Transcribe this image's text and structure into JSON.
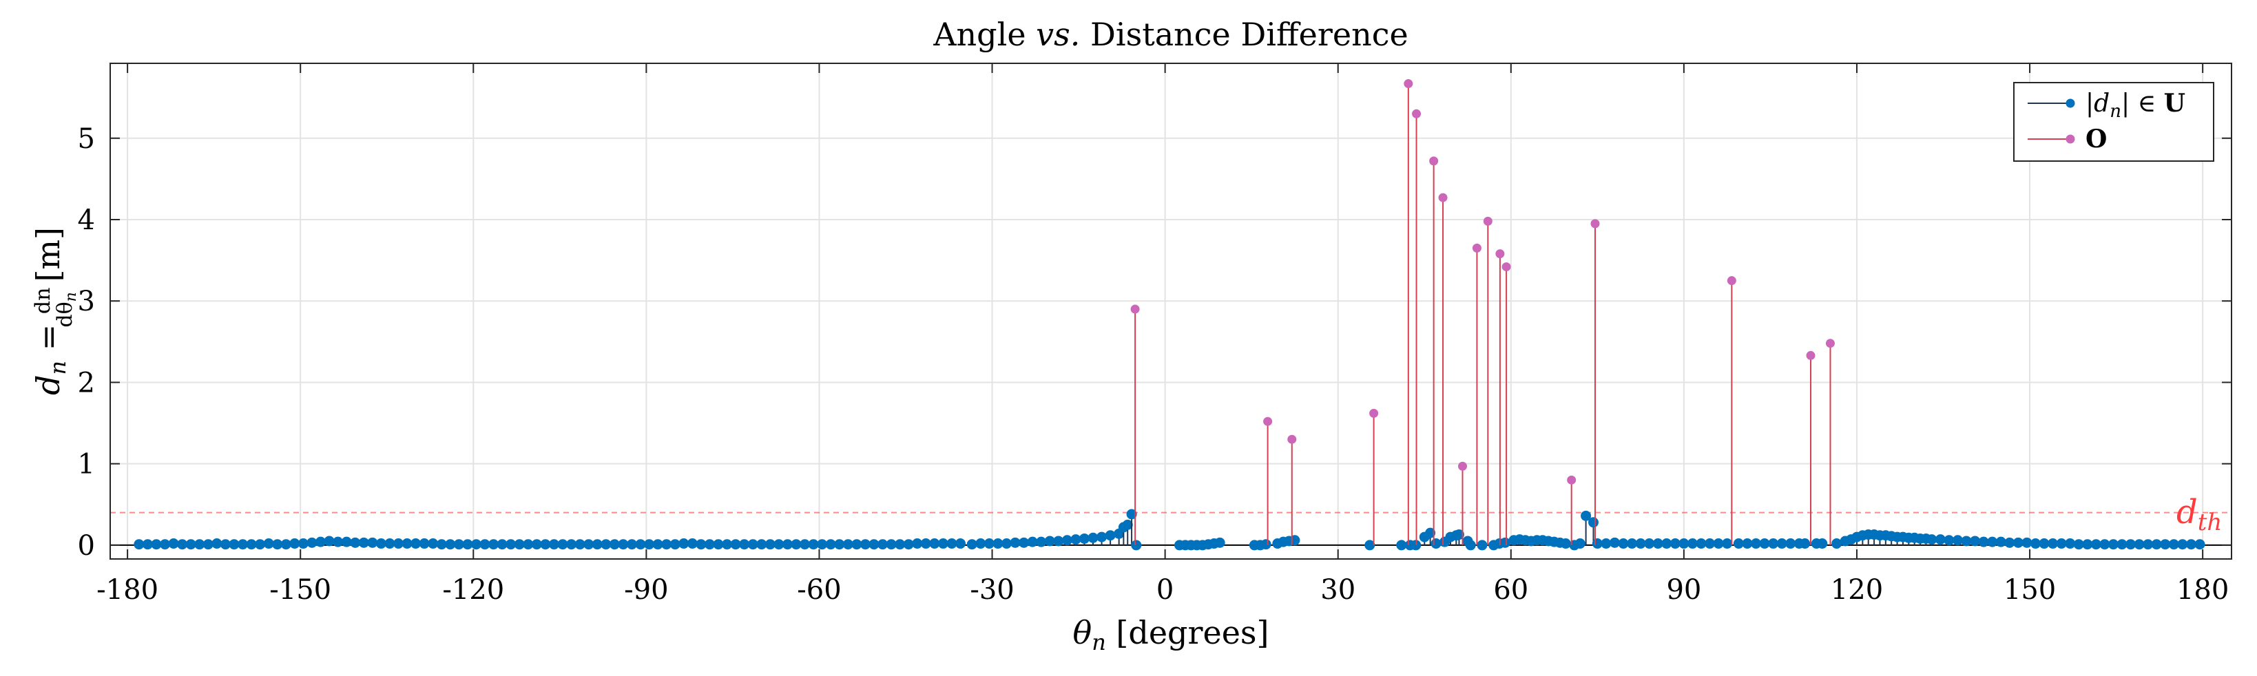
{
  "chart_data": {
    "type": "stem",
    "title": {
      "text": "Angle ",
      "italic": "vs.",
      "rest": " Distance Difference"
    },
    "xlabel": {
      "symbol": "θ",
      "sub": "n",
      "unit": " [degrees]"
    },
    "ylabel": {
      "lhs": "d",
      "lhs_sub": "n",
      "eq": " = ",
      "num": "dn",
      "den": "dθ",
      "den_sub": "n",
      "unit": " [m]"
    },
    "xlim": [
      -183,
      185
    ],
    "ylim": [
      -0.17,
      5.92
    ],
    "xticks": [
      -180,
      -150,
      -120,
      -90,
      -60,
      -30,
      0,
      30,
      60,
      90,
      120,
      150,
      180
    ],
    "yticks": [
      0,
      1,
      2,
      3,
      4,
      5
    ],
    "grid": true,
    "legend_position": "top-right",
    "threshold": {
      "y": 0.4,
      "label": "d",
      "label_sub": "th",
      "color": "#ff3b3b"
    },
    "colors": {
      "U": "#0072bd",
      "U_stem": "#1f3550",
      "O_marker": "#cc66b8",
      "O_stem": "#d64050"
    },
    "legend": [
      {
        "key": "U",
        "pre": "|d",
        "sub": "n",
        "post": "| ∈ ",
        "bold": "U"
      },
      {
        "key": "O",
        "pre": "",
        "sub": "",
        "post": "",
        "bold": "O"
      }
    ],
    "series_U_points": [
      [
        -178,
        0.01
      ],
      [
        -176.5,
        0.01
      ],
      [
        -175,
        0.01
      ],
      [
        -173.5,
        0.01
      ],
      [
        -172,
        0.02
      ],
      [
        -170.5,
        0.01
      ],
      [
        -169,
        0.01
      ],
      [
        -167.5,
        0.01
      ],
      [
        -166,
        0.01
      ],
      [
        -164.5,
        0.02
      ],
      [
        -163,
        0.01
      ],
      [
        -161.5,
        0.01
      ],
      [
        -160,
        0.01
      ],
      [
        -158.5,
        0.01
      ],
      [
        -157,
        0.01
      ],
      [
        -155.5,
        0.02
      ],
      [
        -154,
        0.01
      ],
      [
        -152.5,
        0.01
      ],
      [
        -151,
        0.02
      ],
      [
        -149.5,
        0.02
      ],
      [
        -148,
        0.03
      ],
      [
        -146.5,
        0.04
      ],
      [
        -145,
        0.05
      ],
      [
        -143.5,
        0.04
      ],
      [
        -142,
        0.04
      ],
      [
        -140.5,
        0.03
      ],
      [
        -139,
        0.03
      ],
      [
        -137.5,
        0.03
      ],
      [
        -136,
        0.02
      ],
      [
        -134.5,
        0.02
      ],
      [
        -133,
        0.02
      ],
      [
        -131.5,
        0.02
      ],
      [
        -130,
        0.02
      ],
      [
        -128.5,
        0.02
      ],
      [
        -127,
        0.02
      ],
      [
        -125.5,
        0.01
      ],
      [
        -124,
        0.01
      ],
      [
        -122.5,
        0.01
      ],
      [
        -121,
        0.01
      ],
      [
        -119.5,
        0.01
      ],
      [
        -118,
        0.01
      ],
      [
        -116.5,
        0.01
      ],
      [
        -115,
        0.01
      ],
      [
        -113.5,
        0.01
      ],
      [
        -112,
        0.01
      ],
      [
        -110.5,
        0.01
      ],
      [
        -109,
        0.01
      ],
      [
        -107.5,
        0.01
      ],
      [
        -106,
        0.01
      ],
      [
        -104.5,
        0.01
      ],
      [
        -103,
        0.01
      ],
      [
        -101.5,
        0.01
      ],
      [
        -100,
        0.01
      ],
      [
        -98.5,
        0.01
      ],
      [
        -97,
        0.01
      ],
      [
        -95.5,
        0.01
      ],
      [
        -94,
        0.01
      ],
      [
        -92.5,
        0.01
      ],
      [
        -91,
        0.01
      ],
      [
        -89.5,
        0.01
      ],
      [
        -88,
        0.01
      ],
      [
        -86.5,
        0.01
      ],
      [
        -85,
        0.01
      ],
      [
        -83.5,
        0.02
      ],
      [
        -82,
        0.02
      ],
      [
        -80.5,
        0.01
      ],
      [
        -79,
        0.01
      ],
      [
        -77.5,
        0.01
      ],
      [
        -76,
        0.01
      ],
      [
        -74.5,
        0.01
      ],
      [
        -73,
        0.01
      ],
      [
        -71.5,
        0.01
      ],
      [
        -70,
        0.01
      ],
      [
        -68.5,
        0.01
      ],
      [
        -67,
        0.01
      ],
      [
        -65.5,
        0.01
      ],
      [
        -64,
        0.01
      ],
      [
        -62.5,
        0.01
      ],
      [
        -61,
        0.01
      ],
      [
        -59.5,
        0.01
      ],
      [
        -58,
        0.01
      ],
      [
        -56.5,
        0.01
      ],
      [
        -55,
        0.01
      ],
      [
        -53.5,
        0.01
      ],
      [
        -52,
        0.01
      ],
      [
        -50.5,
        0.01
      ],
      [
        -49,
        0.01
      ],
      [
        -47.5,
        0.01
      ],
      [
        -46,
        0.01
      ],
      [
        -44.5,
        0.01
      ],
      [
        -43,
        0.02
      ],
      [
        -41.5,
        0.02
      ],
      [
        -40,
        0.02
      ],
      [
        -38.5,
        0.02
      ],
      [
        -37,
        0.02
      ],
      [
        -35.5,
        0.02
      ],
      [
        -33.5,
        0.01
      ],
      [
        -32,
        0.02
      ],
      [
        -30.5,
        0.02
      ],
      [
        -29,
        0.02
      ],
      [
        -27.5,
        0.02
      ],
      [
        -26,
        0.03
      ],
      [
        -24.5,
        0.03
      ],
      [
        -23,
        0.04
      ],
      [
        -21.5,
        0.04
      ],
      [
        -20,
        0.05
      ],
      [
        -18.5,
        0.05
      ],
      [
        -17,
        0.06
      ],
      [
        -15.5,
        0.07
      ],
      [
        -14,
        0.08
      ],
      [
        -12.5,
        0.09
      ],
      [
        -11,
        0.1
      ],
      [
        -9.5,
        0.12
      ],
      [
        -8,
        0.14
      ],
      [
        -7.2,
        0.22
      ],
      [
        -6.5,
        0.25
      ],
      [
        -5.8,
        0.38
      ],
      [
        -5,
        0.0
      ],
      [
        2.5,
        0.0
      ],
      [
        3.5,
        0.0
      ],
      [
        4.5,
        0.0
      ],
      [
        5.5,
        0.0
      ],
      [
        6.5,
        0.0
      ],
      [
        7.5,
        0.01
      ],
      [
        8.5,
        0.02
      ],
      [
        9.5,
        0.03
      ],
      [
        15.5,
        0.0
      ],
      [
        16.5,
        0.0
      ],
      [
        17.5,
        0.01
      ],
      [
        19.5,
        0.02
      ],
      [
        20.5,
        0.04
      ],
      [
        21.5,
        0.05
      ],
      [
        22.5,
        0.06
      ],
      [
        35.5,
        0.0
      ],
      [
        41,
        0.0
      ],
      [
        42.5,
        0.0
      ],
      [
        43.5,
        0.0
      ],
      [
        45,
        0.1
      ],
      [
        46,
        0.15
      ],
      [
        47,
        0.02
      ],
      [
        48.5,
        0.04
      ],
      [
        49.5,
        0.1
      ],
      [
        50.5,
        0.12
      ],
      [
        51,
        0.13
      ],
      [
        52.5,
        0.05
      ],
      [
        53,
        0.0
      ],
      [
        55,
        0.0
      ],
      [
        57,
        0.0
      ],
      [
        58,
        0.02
      ],
      [
        59,
        0.03
      ],
      [
        60.5,
        0.06
      ],
      [
        61.5,
        0.07
      ],
      [
        62.5,
        0.06
      ],
      [
        63.5,
        0.05
      ],
      [
        64.5,
        0.06
      ],
      [
        65.5,
        0.06
      ],
      [
        66.5,
        0.05
      ],
      [
        67.5,
        0.04
      ],
      [
        68.5,
        0.03
      ],
      [
        69.5,
        0.02
      ],
      [
        71,
        0.0
      ],
      [
        72,
        0.02
      ],
      [
        73,
        0.36
      ],
      [
        74.3,
        0.28
      ],
      [
        75,
        0.02
      ],
      [
        76.5,
        0.02
      ],
      [
        78,
        0.03
      ],
      [
        79.5,
        0.02
      ],
      [
        81,
        0.02
      ],
      [
        82.5,
        0.02
      ],
      [
        84,
        0.02
      ],
      [
        85.5,
        0.02
      ],
      [
        87,
        0.02
      ],
      [
        88.5,
        0.02
      ],
      [
        90,
        0.02
      ],
      [
        91.5,
        0.02
      ],
      [
        93,
        0.02
      ],
      [
        94.5,
        0.02
      ],
      [
        96,
        0.02
      ],
      [
        97.5,
        0.02
      ],
      [
        99.5,
        0.02
      ],
      [
        101,
        0.02
      ],
      [
        102.5,
        0.02
      ],
      [
        104,
        0.02
      ],
      [
        105.5,
        0.02
      ],
      [
        107,
        0.02
      ],
      [
        108.5,
        0.02
      ],
      [
        110,
        0.02
      ],
      [
        111,
        0.02
      ],
      [
        113,
        0.02
      ],
      [
        114,
        0.02
      ],
      [
        116.5,
        0.02
      ],
      [
        118,
        0.05
      ],
      [
        119,
        0.07
      ],
      [
        120,
        0.1
      ],
      [
        121,
        0.12
      ],
      [
        122,
        0.13
      ],
      [
        123,
        0.13
      ],
      [
        124,
        0.12
      ],
      [
        125,
        0.12
      ],
      [
        126,
        0.11
      ],
      [
        127,
        0.1
      ],
      [
        128,
        0.1
      ],
      [
        129,
        0.09
      ],
      [
        130,
        0.09
      ],
      [
        131,
        0.08
      ],
      [
        132,
        0.08
      ],
      [
        133,
        0.07
      ],
      [
        134.5,
        0.07
      ],
      [
        136,
        0.06
      ],
      [
        137.5,
        0.06
      ],
      [
        139,
        0.05
      ],
      [
        140.5,
        0.05
      ],
      [
        142,
        0.04
      ],
      [
        143.5,
        0.04
      ],
      [
        145,
        0.04
      ],
      [
        146.5,
        0.03
      ],
      [
        148,
        0.03
      ],
      [
        149.5,
        0.03
      ],
      [
        151,
        0.02
      ],
      [
        152.5,
        0.02
      ],
      [
        154,
        0.02
      ],
      [
        155.5,
        0.02
      ],
      [
        157,
        0.02
      ],
      [
        158.5,
        0.01
      ],
      [
        160,
        0.01
      ],
      [
        161.5,
        0.01
      ],
      [
        163,
        0.01
      ],
      [
        164.5,
        0.01
      ],
      [
        166,
        0.01
      ],
      [
        167.5,
        0.01
      ],
      [
        169,
        0.01
      ],
      [
        170.5,
        0.01
      ],
      [
        172,
        0.01
      ],
      [
        173.5,
        0.01
      ],
      [
        175,
        0.01
      ],
      [
        176.5,
        0.01
      ],
      [
        178,
        0.01
      ],
      [
        179.5,
        0.01
      ]
    ],
    "series_O_points": [
      [
        -5.2,
        2.9
      ],
      [
        17.8,
        1.52
      ],
      [
        22,
        1.3
      ],
      [
        36.2,
        1.62
      ],
      [
        42.2,
        5.67
      ],
      [
        43.6,
        5.3
      ],
      [
        46.6,
        4.72
      ],
      [
        48.2,
        4.27
      ],
      [
        51.6,
        0.97
      ],
      [
        54.1,
        3.65
      ],
      [
        56,
        3.98
      ],
      [
        58.1,
        3.58
      ],
      [
        59.2,
        3.42
      ],
      [
        70.5,
        0.8
      ],
      [
        74.6,
        3.95
      ],
      [
        98.3,
        3.25
      ],
      [
        112,
        2.33
      ],
      [
        115.4,
        2.48
      ]
    ]
  }
}
